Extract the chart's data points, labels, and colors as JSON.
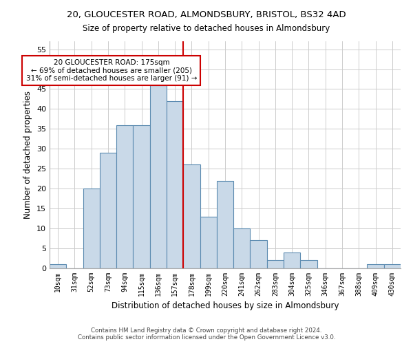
{
  "title1": "20, GLOUCESTER ROAD, ALMONDSBURY, BRISTOL, BS32 4AD",
  "title2": "Size of property relative to detached houses in Almondsbury",
  "xlabel": "Distribution of detached houses by size in Almondsbury",
  "ylabel": "Number of detached properties",
  "footer1": "Contains HM Land Registry data © Crown copyright and database right 2024.",
  "footer2": "Contains public sector information licensed under the Open Government Licence v3.0.",
  "bin_labels": [
    "10sqm",
    "31sqm",
    "52sqm",
    "73sqm",
    "94sqm",
    "115sqm",
    "136sqm",
    "157sqm",
    "178sqm",
    "199sqm",
    "220sqm",
    "241sqm",
    "262sqm",
    "283sqm",
    "304sqm",
    "325sqm",
    "346sqm",
    "367sqm",
    "388sqm",
    "409sqm",
    "430sqm"
  ],
  "bar_heights": [
    1,
    0,
    20,
    29,
    36,
    36,
    46,
    42,
    26,
    13,
    22,
    10,
    7,
    2,
    4,
    2,
    0,
    0,
    0,
    1,
    1
  ],
  "bar_color": "#c9d9e8",
  "bar_edge_color": "#5a8ab0",
  "vline_index": 8,
  "vline_color": "#cc0000",
  "annotation_text": "20 GLOUCESTER ROAD: 175sqm\n← 69% of detached houses are smaller (205)\n31% of semi-detached houses are larger (91) →",
  "annotation_box_color": "#ffffff",
  "annotation_box_edge": "#cc0000",
  "ylim": [
    0,
    57
  ],
  "yticks": [
    0,
    5,
    10,
    15,
    20,
    25,
    30,
    35,
    40,
    45,
    50,
    55
  ],
  "grid_color": "#cccccc",
  "background_color": "#ffffff",
  "fig_width": 6.0,
  "fig_height": 5.0,
  "dpi": 100
}
